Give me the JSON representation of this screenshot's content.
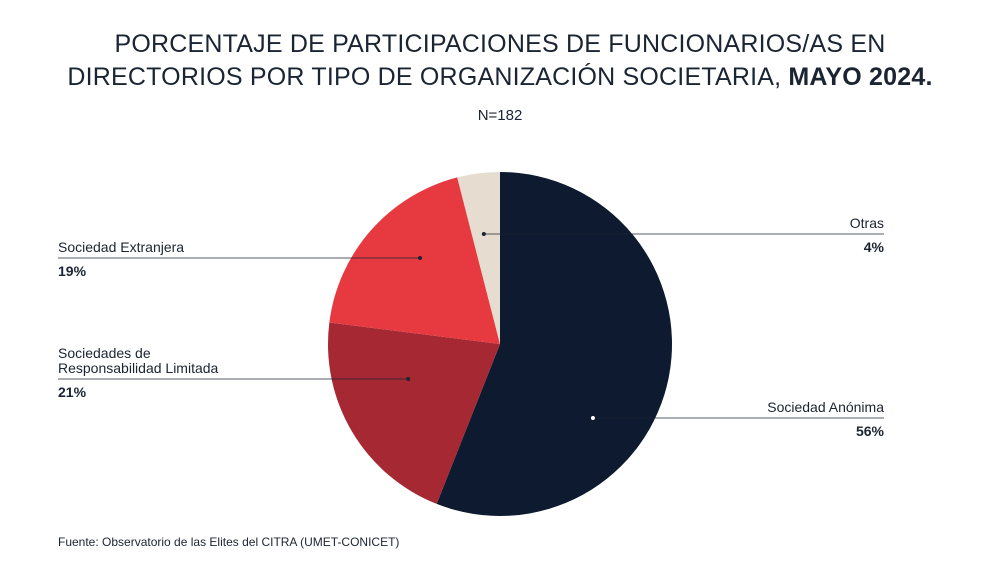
{
  "title": {
    "line1": "PORCENTAJE DE PARTICIPACIONES DE FUNCIONARIOS/AS EN",
    "line2_regular": "DIRECTORIOS POR TIPO DE ORGANIZACIÓN SOCIETARIA, ",
    "line2_bold": "MAYO 2024."
  },
  "subtitle": "N=182",
  "source": "Fuente: Observatorio de las Elites del CITRA (UMET-CONICET)",
  "chart_data": {
    "type": "pie",
    "title": "PORCENTAJE DE PARTICIPACIONES DE FUNCIONARIOS/AS EN DIRECTORIOS POR TIPO DE ORGANIZACIÓN SOCIETARIA, MAYO 2024.",
    "subtitle": "N=182",
    "legend": "callout labels",
    "slices": [
      {
        "name": "Sociedad Anónima",
        "name_lines": [
          "Sociedad Anónima"
        ],
        "value": 56,
        "label": "56%",
        "color": "#0d1a2f"
      },
      {
        "name": "Sociedades de Responsabilidad Limitada",
        "name_lines": [
          "Sociedades de",
          "Responsabilidad Limitada"
        ],
        "value": 21,
        "label": "21%",
        "color": "#a52833"
      },
      {
        "name": "Sociedad Extranjera",
        "name_lines": [
          "Sociedad Extranjera"
        ],
        "value": 19,
        "label": "19%",
        "color": "#e63a40"
      },
      {
        "name": "Otras",
        "name_lines": [
          "Otras"
        ],
        "value": 4,
        "label": "4%",
        "color": "#e6dcd0"
      }
    ]
  }
}
